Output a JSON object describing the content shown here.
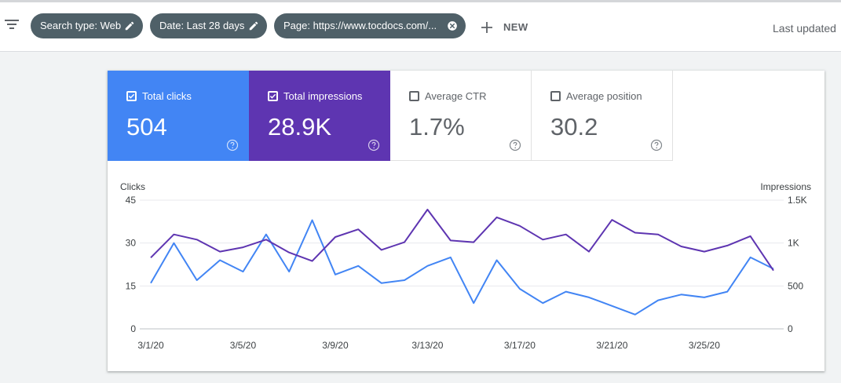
{
  "filters": {
    "chips": [
      {
        "label": "Search type: Web",
        "icon": "pencil-icon"
      },
      {
        "label": "Date: Last 28 days",
        "icon": "pencil-icon"
      },
      {
        "label": "Page: https://www.tocdocs.com/...",
        "icon": "close-circle-icon"
      }
    ],
    "new_label": "NEW",
    "last_updated": "Last updated"
  },
  "metrics": [
    {
      "label": "Total clicks",
      "value": "504",
      "checked": true,
      "color": "#4285f4"
    },
    {
      "label": "Total impressions",
      "value": "28.9K",
      "checked": true,
      "color": "#5e35b1"
    },
    {
      "label": "Average CTR",
      "value": "1.7%",
      "checked": false
    },
    {
      "label": "Average position",
      "value": "30.2",
      "checked": false
    }
  ],
  "chart_data": {
    "type": "line",
    "x": [
      "3/1/20",
      "3/2/20",
      "3/3/20",
      "3/4/20",
      "3/5/20",
      "3/6/20",
      "3/7/20",
      "3/8/20",
      "3/9/20",
      "3/10/20",
      "3/11/20",
      "3/12/20",
      "3/13/20",
      "3/14/20",
      "3/15/20",
      "3/16/20",
      "3/17/20",
      "3/18/20",
      "3/19/20",
      "3/20/20",
      "3/21/20",
      "3/22/20",
      "3/23/20",
      "3/24/20",
      "3/25/20",
      "3/26/20",
      "3/27/20",
      "3/28/20"
    ],
    "x_tick_labels": [
      "3/1/20",
      "3/5/20",
      "3/9/20",
      "3/13/20",
      "3/17/20",
      "3/21/20",
      "3/25/20"
    ],
    "left_axis": {
      "label": "Clicks",
      "ticks": [
        "0",
        "15",
        "30",
        "45"
      ],
      "range": [
        0,
        45
      ]
    },
    "right_axis": {
      "label": "Impressions",
      "ticks": [
        "0",
        "500",
        "1K",
        "1.5K"
      ],
      "range": [
        0,
        1500
      ]
    },
    "grid": true,
    "series": [
      {
        "axis": "left",
        "color": "#4285f4",
        "values": [
          16,
          30,
          17,
          24,
          20,
          33,
          20,
          38,
          19,
          22,
          16,
          17,
          22,
          25,
          9,
          24,
          14,
          9,
          13,
          11,
          8,
          5,
          10,
          12,
          11,
          13,
          25,
          21
        ]
      },
      {
        "axis": "right",
        "color": "#5e35b1",
        "values": [
          830,
          1100,
          1040,
          900,
          950,
          1040,
          890,
          790,
          1070,
          1160,
          920,
          1010,
          1390,
          1030,
          1010,
          1300,
          1200,
          1040,
          1100,
          900,
          1270,
          1120,
          1100,
          960,
          900,
          970,
          1080,
          680
        ]
      }
    ]
  }
}
